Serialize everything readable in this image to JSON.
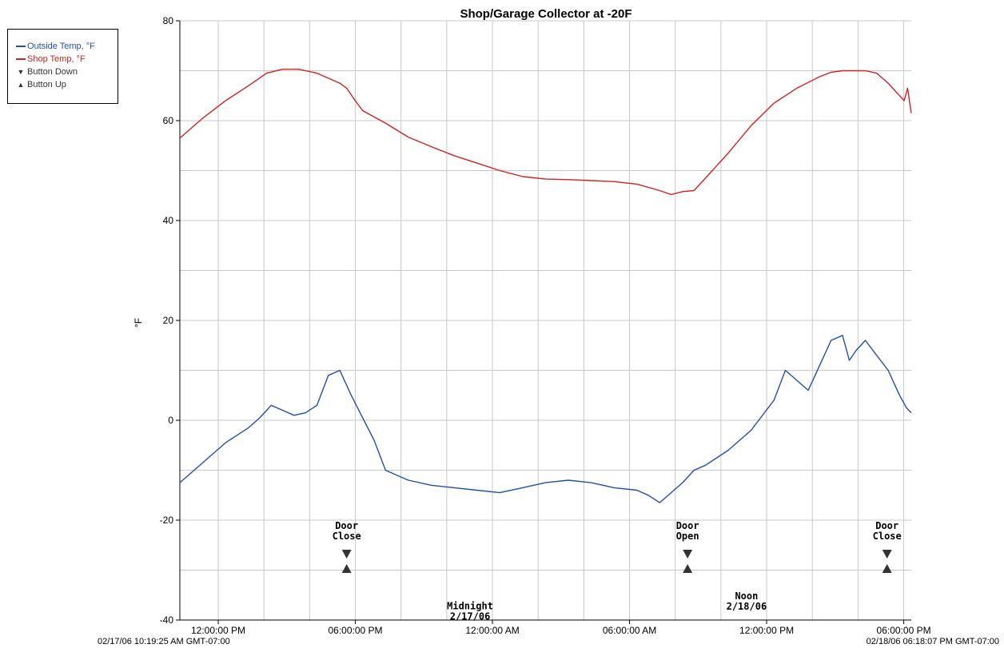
{
  "chart_data": {
    "type": "line",
    "title": "Shop/Garage Collector at -20F",
    "ylabel": "°F",
    "ylim": [
      -40,
      80
    ],
    "yticks": [
      -40,
      -20,
      0,
      20,
      40,
      60,
      80
    ],
    "grid": true,
    "legend_position": "top-left-outside",
    "xlim_hours": [
      0,
      32.01
    ],
    "start_label": "02/17/06 10:19:25 AM GMT-07:00",
    "end_label": "02/18/06 06:18:07 PM GMT-07:00",
    "xticks": [
      {
        "hour": 1.68,
        "label": "12:00:00 PM"
      },
      {
        "hour": 7.68,
        "label": "06:00:00 PM"
      },
      {
        "hour": 13.68,
        "label": "12:00:00 AM"
      },
      {
        "hour": 19.68,
        "label": "06:00:00 AM"
      },
      {
        "hour": 25.68,
        "label": "12:00:00 PM"
      },
      {
        "hour": 31.68,
        "label": "06:00:00 PM"
      }
    ],
    "series": [
      {
        "name": "Shop Temp, °F",
        "color": "#d42020",
        "x": [
          0,
          1,
          2,
          3,
          3.8,
          4.5,
          5.2,
          6,
          7,
          7.3,
          7.6,
          8,
          9,
          10,
          11,
          12,
          13,
          14,
          15,
          16,
          17,
          18,
          19,
          20,
          21,
          21.5,
          22,
          22.5,
          23,
          24,
          25,
          26,
          27,
          28,
          28.5,
          29,
          30,
          30.5,
          31,
          31.5,
          31.7,
          31.85,
          32.01
        ],
        "values": [
          56.5,
          60.5,
          64,
          67,
          69.5,
          70.3,
          70.3,
          69.5,
          67.5,
          66.5,
          64.5,
          62,
          59.5,
          56.7,
          54.8,
          53,
          51.5,
          50,
          48.8,
          48.3,
          48.2,
          48,
          47.8,
          47.3,
          46,
          45.2,
          45.8,
          46,
          48.5,
          53.5,
          59,
          63.5,
          66.5,
          68.8,
          69.7,
          70,
          70,
          69.5,
          67.5,
          65,
          64,
          66.5,
          61.5
        ]
      },
      {
        "name": "Outside Temp, °F",
        "color": "#1f4fb0",
        "x": [
          0,
          1,
          2,
          3,
          3.5,
          4,
          4.5,
          5,
          5.5,
          6,
          6.5,
          7,
          7.5,
          8,
          8.5,
          9,
          10,
          11,
          12,
          13,
          14,
          15,
          16,
          17,
          18,
          19,
          20,
          20.5,
          21,
          21.5,
          22,
          22.5,
          23,
          24,
          25,
          26,
          26.5,
          27,
          27.5,
          28,
          28.5,
          29,
          29.3,
          29.6,
          30,
          30.5,
          31,
          31.5,
          31.8,
          32.01
        ],
        "values": [
          -12.5,
          -8.5,
          -4.5,
          -1.5,
          0.5,
          3,
          2,
          1,
          1.5,
          3,
          9,
          10,
          5,
          0.5,
          -4,
          -10,
          -12,
          -13,
          -13.5,
          -14,
          -14.5,
          -13.5,
          -12.5,
          -12,
          -12.5,
          -13.5,
          -14,
          -15,
          -16.5,
          -14.5,
          -12.5,
          -10,
          -9,
          -6,
          -2,
          4,
          10,
          8,
          6,
          11,
          16,
          17,
          12,
          14,
          16,
          13,
          10,
          5,
          2.5,
          1.5
        ]
      }
    ],
    "markers": [
      {
        "label_line1": "Door",
        "label_line2": "Close",
        "hour": 7.3
      },
      {
        "label_line1": "Door",
        "label_line2": "Open",
        "hour": 22.22
      },
      {
        "label_line1": "Door",
        "label_line2": "Close",
        "hour": 30.95
      }
    ],
    "annotations": [
      {
        "label_line1": "Midnight",
        "label_line2": "2/17/06",
        "hour": 12.7,
        "value": -37.8
      },
      {
        "label_line1": "Noon",
        "label_line2": "2/18/06",
        "hour": 24.8,
        "value": -35.8
      }
    ],
    "legend": [
      {
        "kind": "line",
        "label": "Outside Temp, °F",
        "color": "#1f4fb0"
      },
      {
        "kind": "line",
        "label": "Shop Temp, °F",
        "color": "#d42020"
      },
      {
        "kind": "tri-down",
        "label": "Button Down",
        "color": "#333333"
      },
      {
        "kind": "tri-up",
        "label": "Button Up",
        "color": "#333333"
      }
    ]
  }
}
